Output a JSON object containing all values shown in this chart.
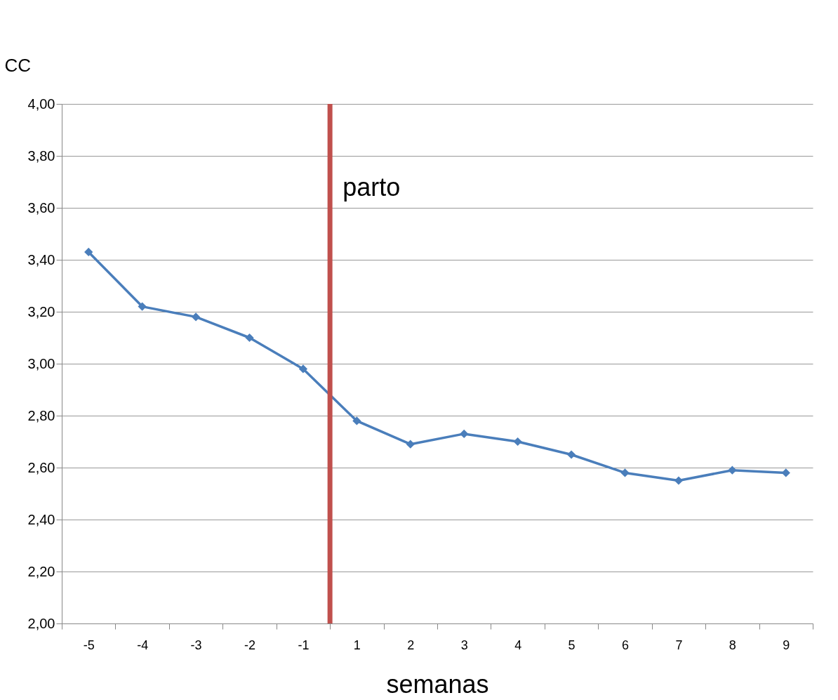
{
  "chart_data": {
    "type": "line",
    "xlabel": "semanas",
    "ylabel": "CC",
    "categories": [
      "-5",
      "-4",
      "-3",
      "-2",
      "-1",
      "1",
      "2",
      "3",
      "4",
      "5",
      "6",
      "7",
      "8",
      "9"
    ],
    "series": [
      {
        "color": "#4a7ebb",
        "values": [
          3.43,
          3.22,
          3.18,
          3.1,
          2.98,
          2.78,
          2.69,
          2.73,
          2.7,
          2.65,
          2.58,
          2.55,
          2.59,
          2.58
        ]
      }
    ],
    "ylim": [
      2,
      4
    ],
    "yticks": [
      {
        "value": 2,
        "label": "2,00"
      },
      {
        "value": 2.2,
        "label": "2,20"
      },
      {
        "value": 2.4,
        "label": "2,40"
      },
      {
        "value": 2.6,
        "label": "2,60"
      },
      {
        "value": 2.8,
        "label": "2,80"
      },
      {
        "value": 3,
        "label": "3,00"
      },
      {
        "value": 3.2,
        "label": "3,20"
      },
      {
        "value": 3.4,
        "label": "3,40"
      },
      {
        "value": 3.6,
        "label": "3,60"
      },
      {
        "value": 3.8,
        "label": "3,80"
      },
      {
        "value": 4,
        "label": "4,00"
      }
    ],
    "grid": "y",
    "marker": "diamond",
    "line_style": "solid",
    "ref_lines": [
      {
        "axis": "x",
        "value": "-1",
        "label": "parto",
        "color": "#c0504d"
      }
    ]
  }
}
